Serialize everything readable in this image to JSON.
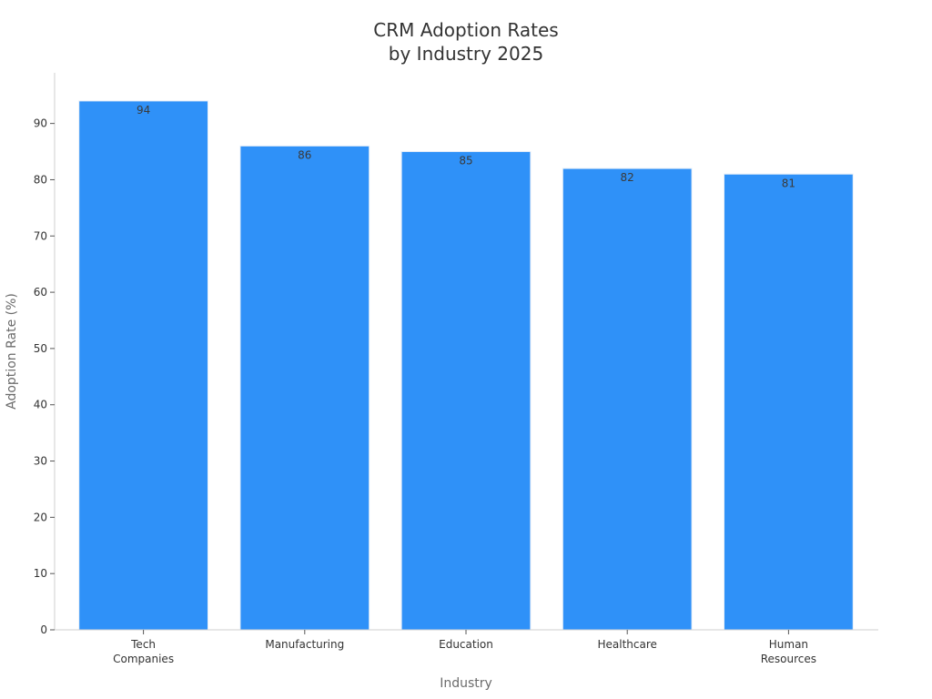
{
  "chart_data": {
    "type": "bar",
    "title_lines": [
      "CRM Adoption Rates",
      "by Industry 2025"
    ],
    "xlabel": "Industry",
    "ylabel": "Adoption Rate (%)",
    "categories": [
      [
        "Tech",
        "Companies"
      ],
      [
        "Manufacturing"
      ],
      [
        "Education"
      ],
      [
        "Healthcare"
      ],
      [
        "Human",
        "Resources"
      ]
    ],
    "values": [
      94,
      86,
      85,
      82,
      81
    ],
    "ylim": [
      0,
      99
    ],
    "yticks": [
      0,
      10,
      20,
      30,
      40,
      50,
      60,
      70,
      80,
      90
    ],
    "bar_color": "#2f91f8",
    "grid": false,
    "legend": "none"
  }
}
